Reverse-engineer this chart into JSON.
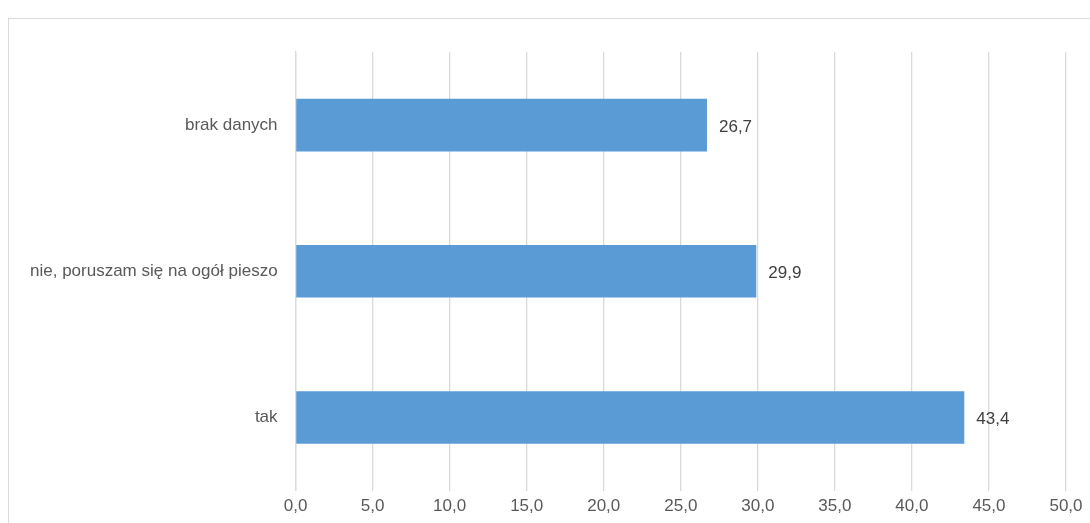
{
  "chart_data": {
    "type": "bar",
    "orientation": "horizontal",
    "categories": [
      "brak danych",
      "nie, poruszam się na ogół pieszo",
      "tak"
    ],
    "values": [
      26.7,
      29.9,
      43.4
    ],
    "value_labels": [
      "26,7",
      "29,9",
      "43,4"
    ],
    "color": "#5b9bd5",
    "xlim": [
      0,
      50
    ],
    "xticks": [
      {
        "value": 0,
        "label": "0,0"
      },
      {
        "value": 5,
        "label": "5,0"
      },
      {
        "value": 10,
        "label": "10,0"
      },
      {
        "value": 15,
        "label": "15,0"
      },
      {
        "value": 20,
        "label": "20,0"
      },
      {
        "value": 25,
        "label": "25,0"
      },
      {
        "value": 30,
        "label": "30,0"
      },
      {
        "value": 35,
        "label": "35,0"
      },
      {
        "value": 40,
        "label": "40,0"
      },
      {
        "value": 45,
        "label": "45,0"
      },
      {
        "value": 50,
        "label": "50,0"
      }
    ],
    "grid": "x",
    "legend": false
  }
}
